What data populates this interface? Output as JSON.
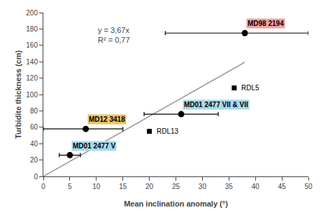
{
  "chart_data": {
    "type": "scatter",
    "title": "",
    "xlabel": "Mean inclination anomaly (°)",
    "ylabel": "Turbidite thickness (cm)",
    "xlim": [
      0,
      50
    ],
    "ylim": [
      0,
      200
    ],
    "xticks": [
      0,
      5,
      10,
      15,
      20,
      25,
      30,
      35,
      40,
      45,
      50
    ],
    "yticks": [
      0,
      20,
      40,
      60,
      80,
      100,
      120,
      140,
      160,
      180,
      200
    ],
    "grid": false,
    "annotations": [
      "y = 3,67x",
      "R² = 0,77"
    ],
    "series": [
      {
        "type": "line",
        "color": "#909090",
        "x": [
          0,
          38
        ],
        "values": [
          0,
          139.46
        ]
      },
      {
        "type": "scatter",
        "marker": "square",
        "color": "#000000",
        "x": [
          20,
          36
        ],
        "values": [
          55,
          108
        ],
        "labels": [
          "RDL13",
          "RDL5"
        ]
      },
      {
        "type": "scatter",
        "marker": "circle",
        "color": "#000000",
        "x": [
          5,
          8,
          26,
          38
        ],
        "values": [
          26,
          58,
          76,
          175
        ],
        "xerr_minus": [
          2,
          8,
          7,
          15
        ],
        "xerr_plus": [
          2,
          7,
          7,
          12
        ],
        "labels": [
          "MD01 2477 V",
          "MD12 3418",
          "MD01 2477 VII & VII",
          "MD98 2194"
        ],
        "label_colors": [
          "#a8d8ea",
          "#f0c060",
          "#a8d8ea",
          "#f4a0a0"
        ]
      }
    ]
  }
}
